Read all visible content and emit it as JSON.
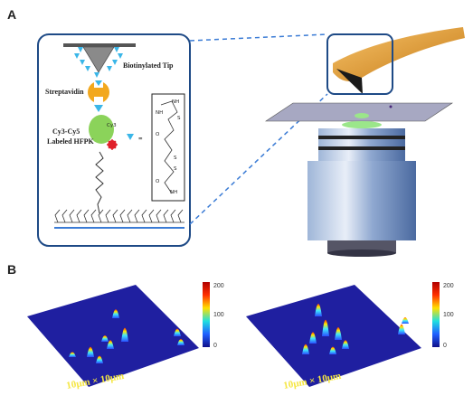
{
  "panels": {
    "a": "A",
    "b": "B"
  },
  "schematic": {
    "tip_label": "Biotinylated Tip",
    "streptavidin_label": "Streptavidin",
    "protein_label_line1": "Cy3-Cy5",
    "protein_label_line2": "Labeled HFPK",
    "dye_label": "Cy3",
    "chem_letters": [
      "NH",
      "S",
      "NH",
      "O",
      "S",
      "S",
      "O",
      "NH"
    ],
    "equals": "="
  },
  "maps": {
    "left_scale": "10μm × 10μm",
    "right_scale": "10μm × 10μm",
    "colorbar_ticks_left": [
      "200",
      "100",
      "0"
    ],
    "colorbar_ticks_right": [
      "200",
      "100",
      "0"
    ]
  },
  "colors": {
    "tip_gold": "#e5a23a",
    "surface_blue": "#1f1fa0",
    "frame_blue": "#1e4a86",
    "dash_blue": "#3a7bd5",
    "biotin_cyan": "#3ab6e8",
    "streptavidin_orange": "#f2a81e",
    "protein_green": "#8bd35a"
  }
}
